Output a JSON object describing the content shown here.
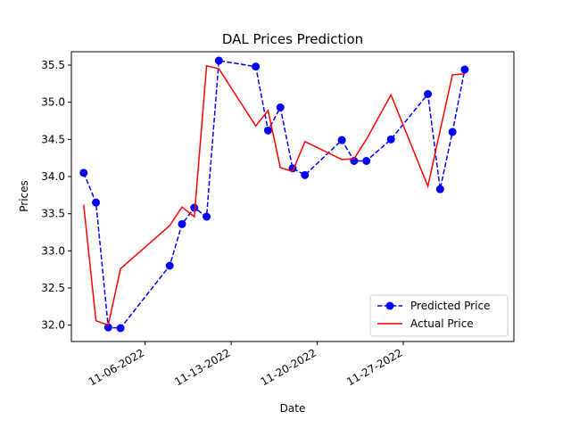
{
  "chart_data": {
    "type": "line",
    "title": "DAL Prices Prediction",
    "xlabel": "Date",
    "ylabel": "Prices",
    "x_ticks": [
      "2022-11-06",
      "2022-11-13",
      "2022-11-20",
      "2022-11-27"
    ],
    "x_tick_labels": [
      "11-06-2022",
      "11-13-2022",
      "11-20-2022",
      "11-27-2022"
    ],
    "y_ticks": [
      32.0,
      32.5,
      33.0,
      33.5,
      34.0,
      34.5,
      35.0,
      35.5
    ],
    "y_tick_labels": [
      "32.0",
      "32.5",
      "33.0",
      "33.5",
      "34.0",
      "34.5",
      "35.0",
      "35.5"
    ],
    "xlim": [
      "2022-10-31",
      "2022-12-06"
    ],
    "ylim": [
      31.78,
      35.68
    ],
    "grid": false,
    "legend_position": "lower-right",
    "series": [
      {
        "name": "Predicted Price",
        "color": "#0000ff",
        "style": "dashed-with-markers",
        "points": [
          {
            "x": "2022-11-01",
            "y": 34.05
          },
          {
            "x": "2022-11-02",
            "y": 33.65
          },
          {
            "x": "2022-11-03",
            "y": 31.97
          },
          {
            "x": "2022-11-04",
            "y": 31.96
          },
          {
            "x": "2022-11-08",
            "y": 32.8
          },
          {
            "x": "2022-11-09",
            "y": 33.36
          },
          {
            "x": "2022-11-10",
            "y": 33.58
          },
          {
            "x": "2022-11-11",
            "y": 33.46
          },
          {
            "x": "2022-11-12",
            "y": 35.56
          },
          {
            "x": "2022-11-15",
            "y": 35.48
          },
          {
            "x": "2022-11-16",
            "y": 34.62
          },
          {
            "x": "2022-11-17",
            "y": 34.93
          },
          {
            "x": "2022-11-18",
            "y": 34.11
          },
          {
            "x": "2022-11-19",
            "y": 34.02
          },
          {
            "x": "2022-11-22",
            "y": 34.49
          },
          {
            "x": "2022-11-23",
            "y": 34.21
          },
          {
            "x": "2022-11-24",
            "y": 34.21
          },
          {
            "x": "2022-11-26",
            "y": 34.5
          },
          {
            "x": "2022-11-29",
            "y": 35.11
          },
          {
            "x": "2022-11-30",
            "y": 33.83
          },
          {
            "x": "2022-12-01",
            "y": 34.6
          },
          {
            "x": "2022-12-02",
            "y": 35.44
          }
        ]
      },
      {
        "name": "Actual Price",
        "color": "#ff0000",
        "style": "solid",
        "points": [
          {
            "x": "2022-11-01",
            "y": 33.62
          },
          {
            "x": "2022-11-02",
            "y": 32.06
          },
          {
            "x": "2022-11-03",
            "y": 32.0
          },
          {
            "x": "2022-11-04",
            "y": 32.76
          },
          {
            "x": "2022-11-08",
            "y": 33.34
          },
          {
            "x": "2022-11-09",
            "y": 33.59
          },
          {
            "x": "2022-11-10",
            "y": 33.46
          },
          {
            "x": "2022-11-11",
            "y": 35.49
          },
          {
            "x": "2022-11-12",
            "y": 35.45
          },
          {
            "x": "2022-11-15",
            "y": 34.68
          },
          {
            "x": "2022-11-16",
            "y": 34.89
          },
          {
            "x": "2022-11-17",
            "y": 34.12
          },
          {
            "x": "2022-11-18",
            "y": 34.07
          },
          {
            "x": "2022-11-19",
            "y": 34.47
          },
          {
            "x": "2022-11-22",
            "y": 34.23
          },
          {
            "x": "2022-11-23",
            "y": 34.24
          },
          {
            "x": "2022-11-24",
            "y": 34.5
          },
          {
            "x": "2022-11-26",
            "y": 35.1
          },
          {
            "x": "2022-11-29",
            "y": 33.87
          },
          {
            "x": "2022-12-01",
            "y": 35.37
          },
          {
            "x": "2022-12-02",
            "y": 35.38
          }
        ]
      }
    ]
  }
}
